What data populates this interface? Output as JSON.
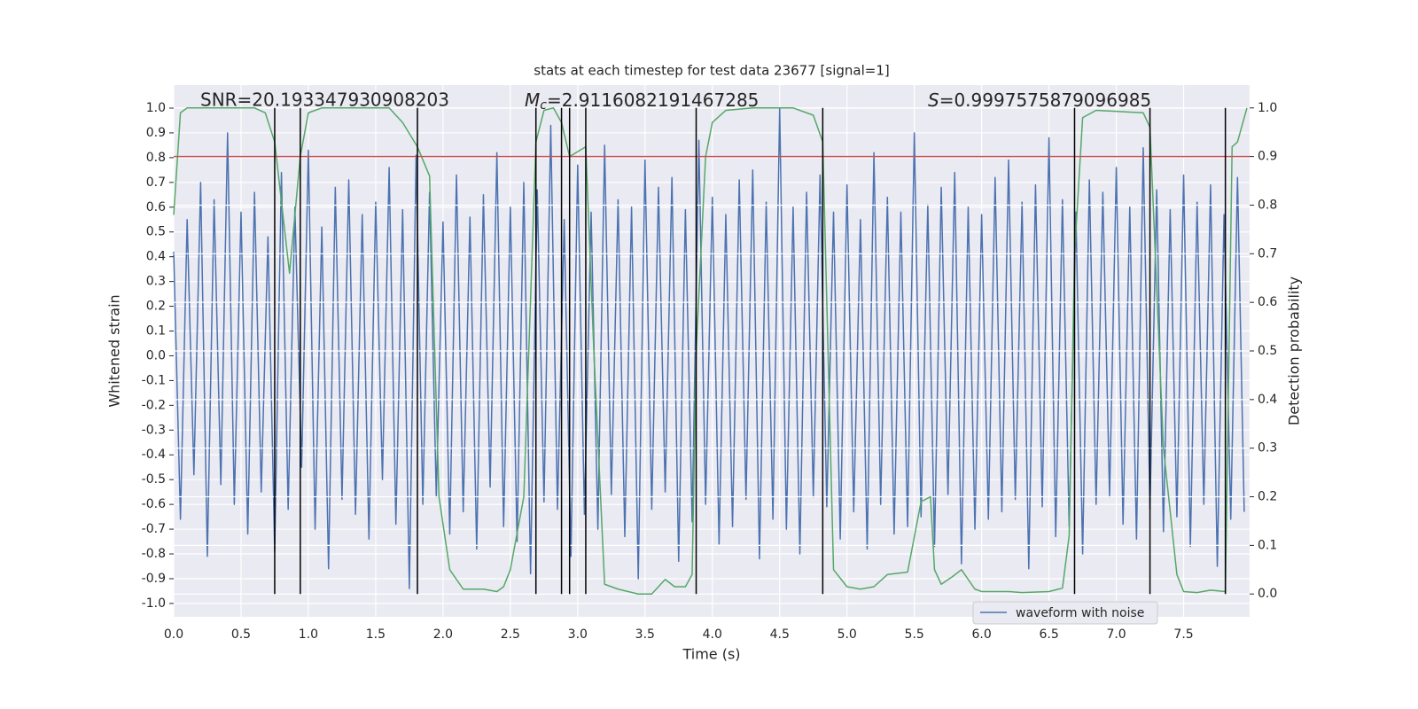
{
  "chart_data": {
    "type": "line",
    "title": "stats at each timestep for test data 23677 [signal=1]",
    "xlabel": "Time (s)",
    "ylabel": "Whitened strain",
    "y2label": "Detection probability",
    "annotations": [
      {
        "text": "SNR=20.193347930908203"
      },
      {
        "symbol": "M",
        "subscript": "c",
        "text": "=2.9116082191467285"
      },
      {
        "symbol": "S",
        "text": "=0.9997575879096985"
      }
    ],
    "xlim": [
      0,
      7.99
    ],
    "ylim": [
      -1.054,
      1.093
    ],
    "y2lim": [
      -0.047,
      1.047
    ],
    "xticks": [
      {
        "value": 0,
        "label": "0.0"
      },
      0.5,
      {
        "value": 1,
        "label": "1.0"
      },
      1.5,
      {
        "value": 2,
        "label": "2.0"
      },
      2.5,
      {
        "value": 3,
        "label": "3.0"
      },
      3.5,
      {
        "value": 4,
        "label": "4.0"
      },
      4.5,
      {
        "value": 5,
        "label": "5.0"
      },
      5.5,
      {
        "value": 6,
        "label": "6.0"
      },
      6.5,
      {
        "value": 7,
        "label": "7.0"
      },
      7.5
    ],
    "yticks": [
      {
        "value": -1,
        "label": "-1.0"
      },
      -0.9,
      -0.8,
      -0.7,
      -0.6,
      -0.5,
      -0.4,
      -0.3,
      -0.2,
      -0.1,
      {
        "value": 0,
        "label": "0.0"
      },
      0.1,
      0.2,
      0.3,
      0.4,
      0.5,
      0.6,
      0.7,
      0.8,
      0.9,
      {
        "value": 1,
        "label": "1.0"
      }
    ],
    "y2ticks": [
      {
        "value": 0,
        "label": "0.0"
      },
      0.1,
      0.2,
      0.3,
      0.4,
      0.5,
      0.6,
      0.7,
      0.8,
      0.9,
      {
        "value": 1,
        "label": "1.0"
      }
    ],
    "grid": true,
    "legend": "lower right",
    "series": [
      {
        "name": "waveform with noise",
        "color": "#4c72b0",
        "x": [
          0,
          0.05,
          0.1,
          0.15,
          0.2,
          0.25,
          0.3,
          0.35,
          0.4,
          0.45,
          0.5,
          0.55,
          0.6,
          0.65,
          0.7,
          0.75,
          0.8,
          0.85,
          0.9,
          0.95,
          1,
          1.05,
          1.1,
          1.15,
          1.2,
          1.25,
          1.3,
          1.35,
          1.4,
          1.45,
          1.5,
          1.55,
          1.6,
          1.65,
          1.7,
          1.75,
          1.8,
          1.85,
          1.9,
          1.95,
          2,
          2.05,
          2.1,
          2.15,
          2.2,
          2.25,
          2.3,
          2.35,
          2.4,
          2.45,
          2.5,
          2.55,
          2.6,
          2.65,
          2.7,
          2.75,
          2.8,
          2.85,
          2.9,
          2.95,
          3,
          3.05,
          3.1,
          3.15,
          3.2,
          3.25,
          3.3,
          3.35,
          3.4,
          3.45,
          3.5,
          3.55,
          3.6,
          3.65,
          3.7,
          3.75,
          3.8,
          3.85,
          3.9,
          3.95,
          4,
          4.05,
          4.1,
          4.15,
          4.2,
          4.25,
          4.3,
          4.35,
          4.4,
          4.45,
          4.5,
          4.55,
          4.6,
          4.65,
          4.7,
          4.75,
          4.8,
          4.85,
          4.9,
          4.95,
          5,
          5.05,
          5.1,
          5.15,
          5.2,
          5.25,
          5.3,
          5.35,
          5.4,
          5.45,
          5.5,
          5.55,
          5.6,
          5.65,
          5.7,
          5.75,
          5.8,
          5.85,
          5.9,
          5.95,
          6,
          6.05,
          6.1,
          6.15,
          6.2,
          6.25,
          6.3,
          6.35,
          6.4,
          6.45,
          6.5,
          6.55,
          6.6,
          6.65,
          6.7,
          6.75,
          6.8,
          6.85,
          6.9,
          6.95,
          7,
          7.05,
          7.1,
          7.15,
          7.2,
          7.25,
          7.3,
          7.35,
          7.4,
          7.45,
          7.5,
          7.55,
          7.6,
          7.65,
          7.7,
          7.75,
          7.8,
          7.85,
          7.9,
          7.95
        ],
        "values": [
          0.42,
          -0.66,
          0.55,
          -0.48,
          0.7,
          -0.81,
          0.63,
          -0.52,
          0.9,
          -0.6,
          0.58,
          -0.72,
          0.66,
          -0.55,
          0.48,
          -0.79,
          0.74,
          -0.62,
          0.6,
          -0.45,
          0.83,
          -0.7,
          0.52,
          -0.86,
          0.68,
          -0.58,
          0.71,
          -0.64,
          0.57,
          -0.74,
          0.62,
          -0.5,
          0.76,
          -0.68,
          0.59,
          -0.94,
          0.81,
          -0.6,
          0.66,
          -0.57,
          0.54,
          -0.72,
          0.73,
          -0.63,
          0.56,
          -0.78,
          0.65,
          -0.53,
          0.82,
          -0.69,
          0.6,
          -0.75,
          0.7,
          -0.88,
          0.67,
          -0.59,
          0.93,
          -0.62,
          0.55,
          -0.81,
          0.77,
          -0.64,
          0.58,
          -0.7,
          0.85,
          -0.56,
          0.63,
          -0.73,
          0.6,
          -0.9,
          0.79,
          -0.62,
          0.68,
          -0.55,
          0.72,
          -0.83,
          0.59,
          -0.67,
          0.87,
          -0.6,
          0.64,
          -0.76,
          0.57,
          -0.69,
          0.71,
          -0.58,
          0.75,
          -0.82,
          0.62,
          -0.66,
          1.0,
          -0.7,
          0.6,
          -0.8,
          0.66,
          -0.57,
          0.73,
          -0.61,
          0.58,
          -0.74,
          0.69,
          -0.63,
          0.55,
          -0.78,
          0.82,
          -0.6,
          0.64,
          -0.72,
          0.58,
          -0.69,
          0.9,
          -0.65,
          0.61,
          -0.77,
          0.68,
          -0.56,
          0.74,
          -0.84,
          0.6,
          -0.7,
          0.57,
          -0.66,
          0.72,
          -0.63,
          0.79,
          -0.58,
          0.62,
          -0.86,
          0.69,
          -0.61,
          0.88,
          -0.73,
          0.63,
          -0.69,
          0.58,
          -0.8,
          0.71,
          -0.6,
          0.66,
          -0.57,
          0.76,
          -0.68,
          0.6,
          -0.74,
          0.84,
          -0.62,
          0.67,
          -0.71,
          0.59,
          -0.65,
          0.73,
          -0.77,
          0.62,
          -0.6,
          0.69,
          -0.85,
          0.57,
          -0.66,
          0.72,
          -0.63
        ]
      },
      {
        "color": "#55a868",
        "axis": "y2",
        "x": [
          0,
          0.05,
          0.1,
          0.6,
          0.68,
          0.75,
          0.86,
          0.94,
          1,
          1.1,
          1.6,
          1.7,
          1.81,
          1.9,
          1.97,
          2.05,
          2.15,
          2.3,
          2.4,
          2.45,
          2.5,
          2.6,
          2.69,
          2.75,
          2.82,
          2.88,
          2.94,
          3.06,
          3.12,
          3.2,
          3.3,
          3.45,
          3.55,
          3.65,
          3.72,
          3.8,
          3.85,
          3.88,
          3.95,
          4,
          4.1,
          4.3,
          4.6,
          4.7,
          4.75,
          4.82,
          4.9,
          5,
          5.1,
          5.2,
          5.3,
          5.45,
          5.55,
          5.62,
          5.65,
          5.7,
          5.78,
          5.85,
          5.95,
          6,
          6.2,
          6.3,
          6.5,
          6.6,
          6.65,
          6.69,
          6.75,
          6.85,
          7.2,
          7.25,
          7.35,
          7.45,
          7.5,
          7.6,
          7.7,
          7.81,
          7.86,
          7.9,
          7.97
        ],
        "values": [
          0.78,
          0.99,
          1,
          1,
          0.99,
          0.93,
          0.66,
          0.9,
          0.99,
          1,
          1,
          0.97,
          0.92,
          0.86,
          0.2,
          0.05,
          0.01,
          0.01,
          0.005,
          0.015,
          0.05,
          0.2,
          0.93,
          0.995,
          1,
          0.97,
          0.9,
          0.92,
          0.5,
          0.02,
          0.01,
          0,
          0,
          0.03,
          0.015,
          0.015,
          0.04,
          0.5,
          0.9,
          0.97,
          0.995,
          1,
          1,
          0.99,
          0.985,
          0.93,
          0.05,
          0.015,
          0.01,
          0.015,
          0.04,
          0.045,
          0.19,
          0.2,
          0.05,
          0.02,
          0.035,
          0.05,
          0.01,
          0.005,
          0.005,
          0.003,
          0.005,
          0.012,
          0.12,
          0.7,
          0.98,
          0.995,
          0.99,
          0.96,
          0.3,
          0.04,
          0.005,
          0.003,
          0.008,
          0.005,
          0.92,
          0.93,
          1
        ]
      }
    ],
    "threshold": {
      "value": 0.9,
      "color": "#c44e52",
      "axis": "y2"
    },
    "vlines": {
      "x": [
        0.75,
        0.94,
        1.81,
        2.69,
        2.88,
        2.94,
        3.06,
        3.88,
        4.82,
        6.69,
        7.25,
        7.81
      ],
      "span": [
        0,
        1
      ],
      "axis": "y2",
      "color": "#000000"
    }
  }
}
